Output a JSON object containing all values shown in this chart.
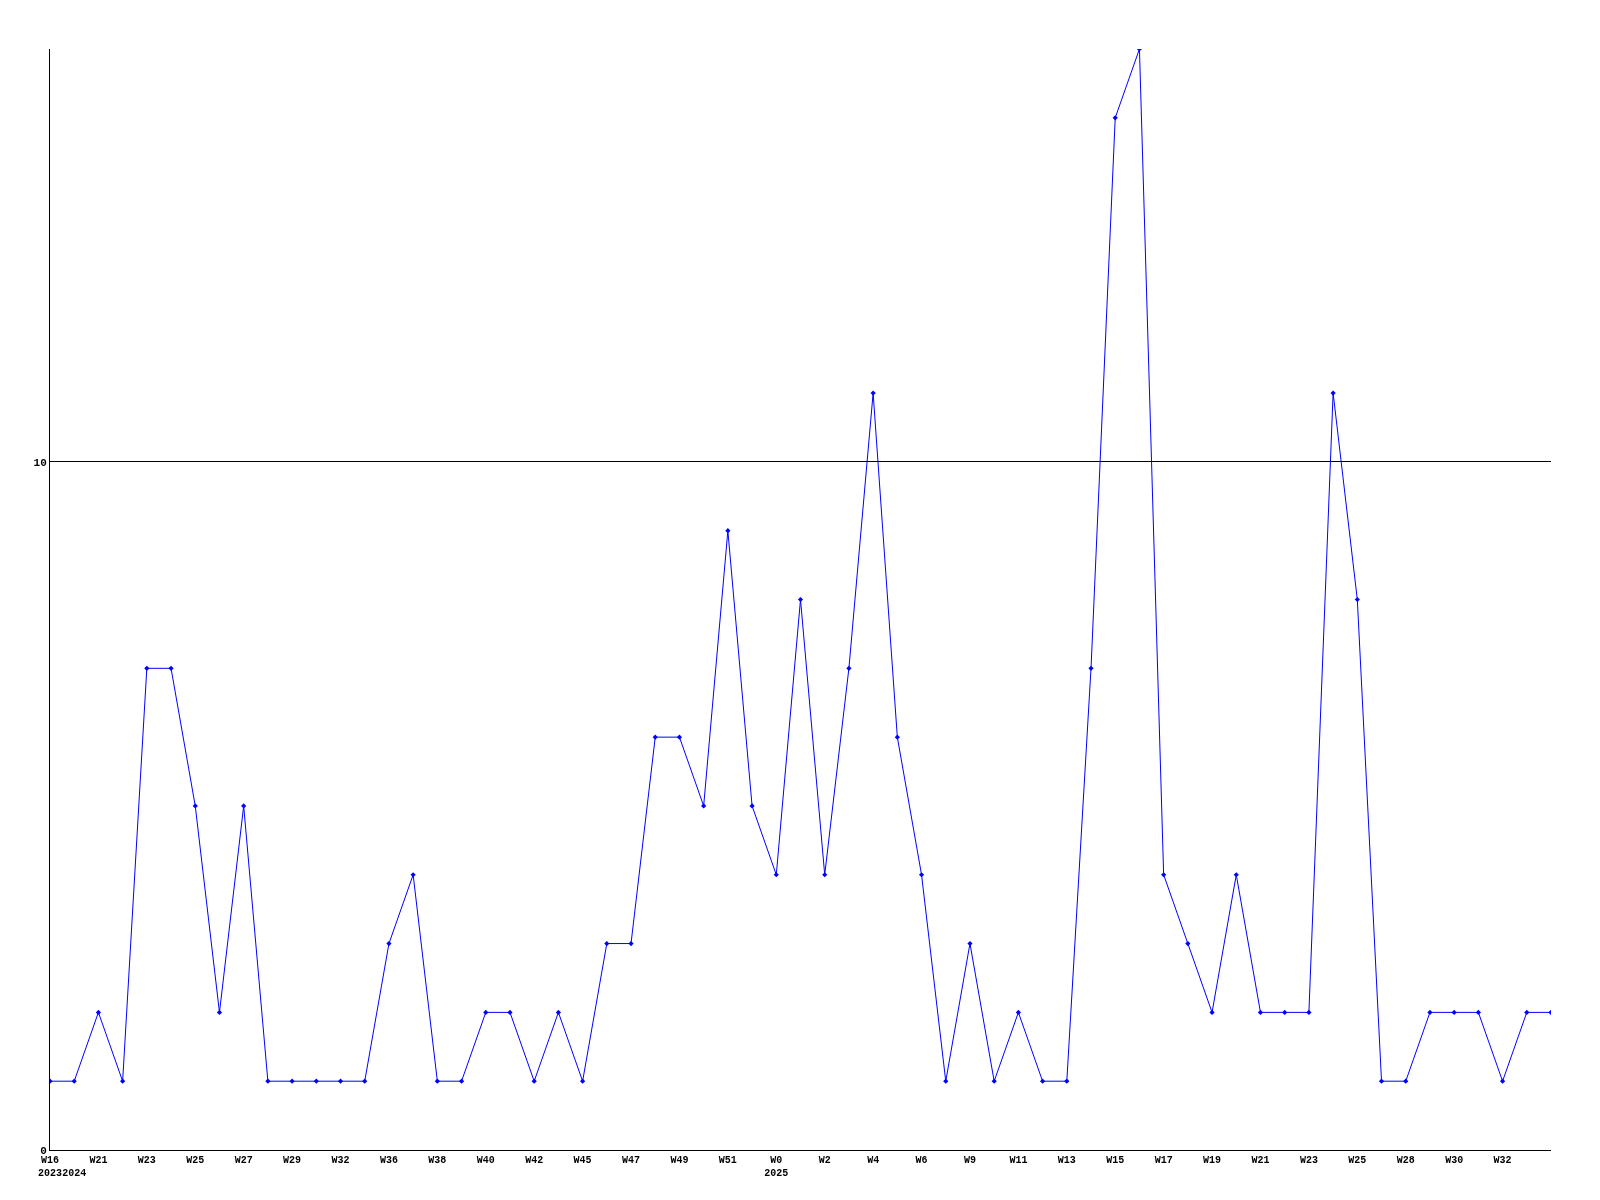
{
  "chart_data": {
    "type": "line",
    "categories": [
      "W16\n2023",
      "\n2024",
      "W21",
      null,
      "W23",
      null,
      "W25",
      null,
      "W27",
      null,
      "W29",
      null,
      "W32",
      null,
      "W36",
      null,
      "W38",
      null,
      "W40",
      null,
      "W42",
      null,
      "W45",
      null,
      "W47",
      null,
      "W49",
      null,
      "W51",
      null,
      "W0\n2025",
      null,
      "W2",
      null,
      "W4",
      null,
      "W6",
      null,
      "W9",
      null,
      "W11",
      null,
      "W13",
      null,
      "W15",
      null,
      "W17",
      null,
      "W19",
      null,
      "W21",
      null,
      "W23",
      null,
      "W25",
      null,
      "W28",
      null,
      "W30",
      null,
      "W32",
      null,
      null
    ],
    "series": [
      {
        "color": "#0000ff",
        "values": [
          1,
          1,
          2,
          1,
          7,
          7,
          5,
          2,
          5,
          1,
          1,
          1,
          1,
          1,
          3,
          4,
          1,
          1,
          2,
          2,
          1,
          2,
          1,
          3,
          3,
          6,
          6,
          5,
          9,
          5,
          4,
          8,
          4,
          7,
          11,
          6,
          4,
          1,
          3,
          1,
          2,
          1,
          1,
          7,
          15,
          16,
          4,
          3,
          2,
          4,
          2,
          2,
          2,
          11,
          8,
          1,
          1,
          2,
          2,
          2,
          1,
          2,
          2
        ]
      }
    ],
    "ylim": [
      0,
      16
    ],
    "yticks": [
      0,
      10
    ],
    "grid": "y",
    "marker": "diamond",
    "line_style": "solid"
  }
}
